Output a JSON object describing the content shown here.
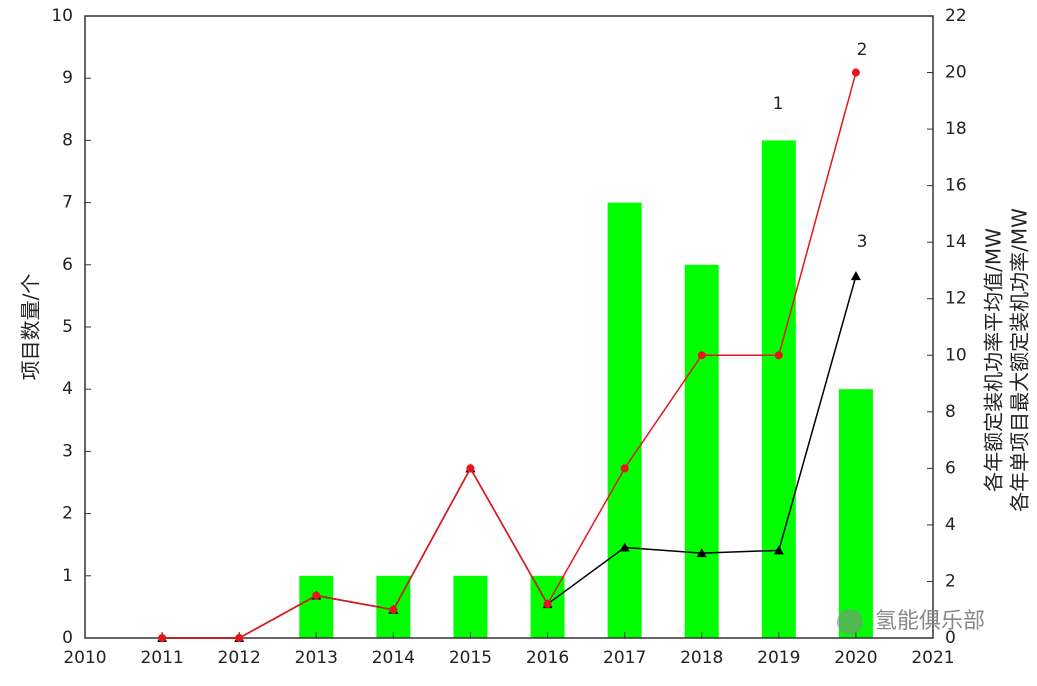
{
  "chart_data": {
    "type": "bar-line",
    "x": [
      2011,
      2012,
      2013,
      2014,
      2015,
      2016,
      2017,
      2018,
      2019,
      2020
    ],
    "series": [
      {
        "type": "bar",
        "color": "#00ff00",
        "values": [
          null,
          null,
          1,
          1,
          1,
          1,
          7,
          6,
          8,
          4
        ]
      },
      {
        "type": "line",
        "axis": "y2",
        "color": "#000000",
        "values": [
          0,
          0,
          1.5,
          1,
          6,
          1.2,
          3.2,
          3.0,
          3.1,
          12.8
        ]
      },
      {
        "type": "line",
        "axis": "y2",
        "color": "#e8141b",
        "values": [
          0,
          0,
          1.5,
          1,
          6,
          1.2,
          6,
          10,
          10,
          20
        ]
      }
    ],
    "xlim": [
      2010,
      2021
    ],
    "xticks": [
      2010,
      2011,
      2012,
      2013,
      2014,
      2015,
      2016,
      2017,
      2018,
      2019,
      2020,
      2021
    ],
    "ylim": [
      0,
      10
    ],
    "yticks": [
      0,
      1,
      2,
      3,
      4,
      5,
      6,
      7,
      8,
      9,
      10
    ],
    "y2lim": [
      0,
      22
    ],
    "y2ticks": [
      0,
      2,
      4,
      6,
      8,
      10,
      12,
      14,
      16,
      18,
      20,
      22
    ],
    "ylabel": "项目数量/个",
    "y2label": [
      "各年额定装机功率平均值/MW",
      "各年单项目最大额定装机功率/MW"
    ],
    "annotations": [
      "1",
      "2",
      "3"
    ],
    "watermark": "氢能俱乐部"
  }
}
